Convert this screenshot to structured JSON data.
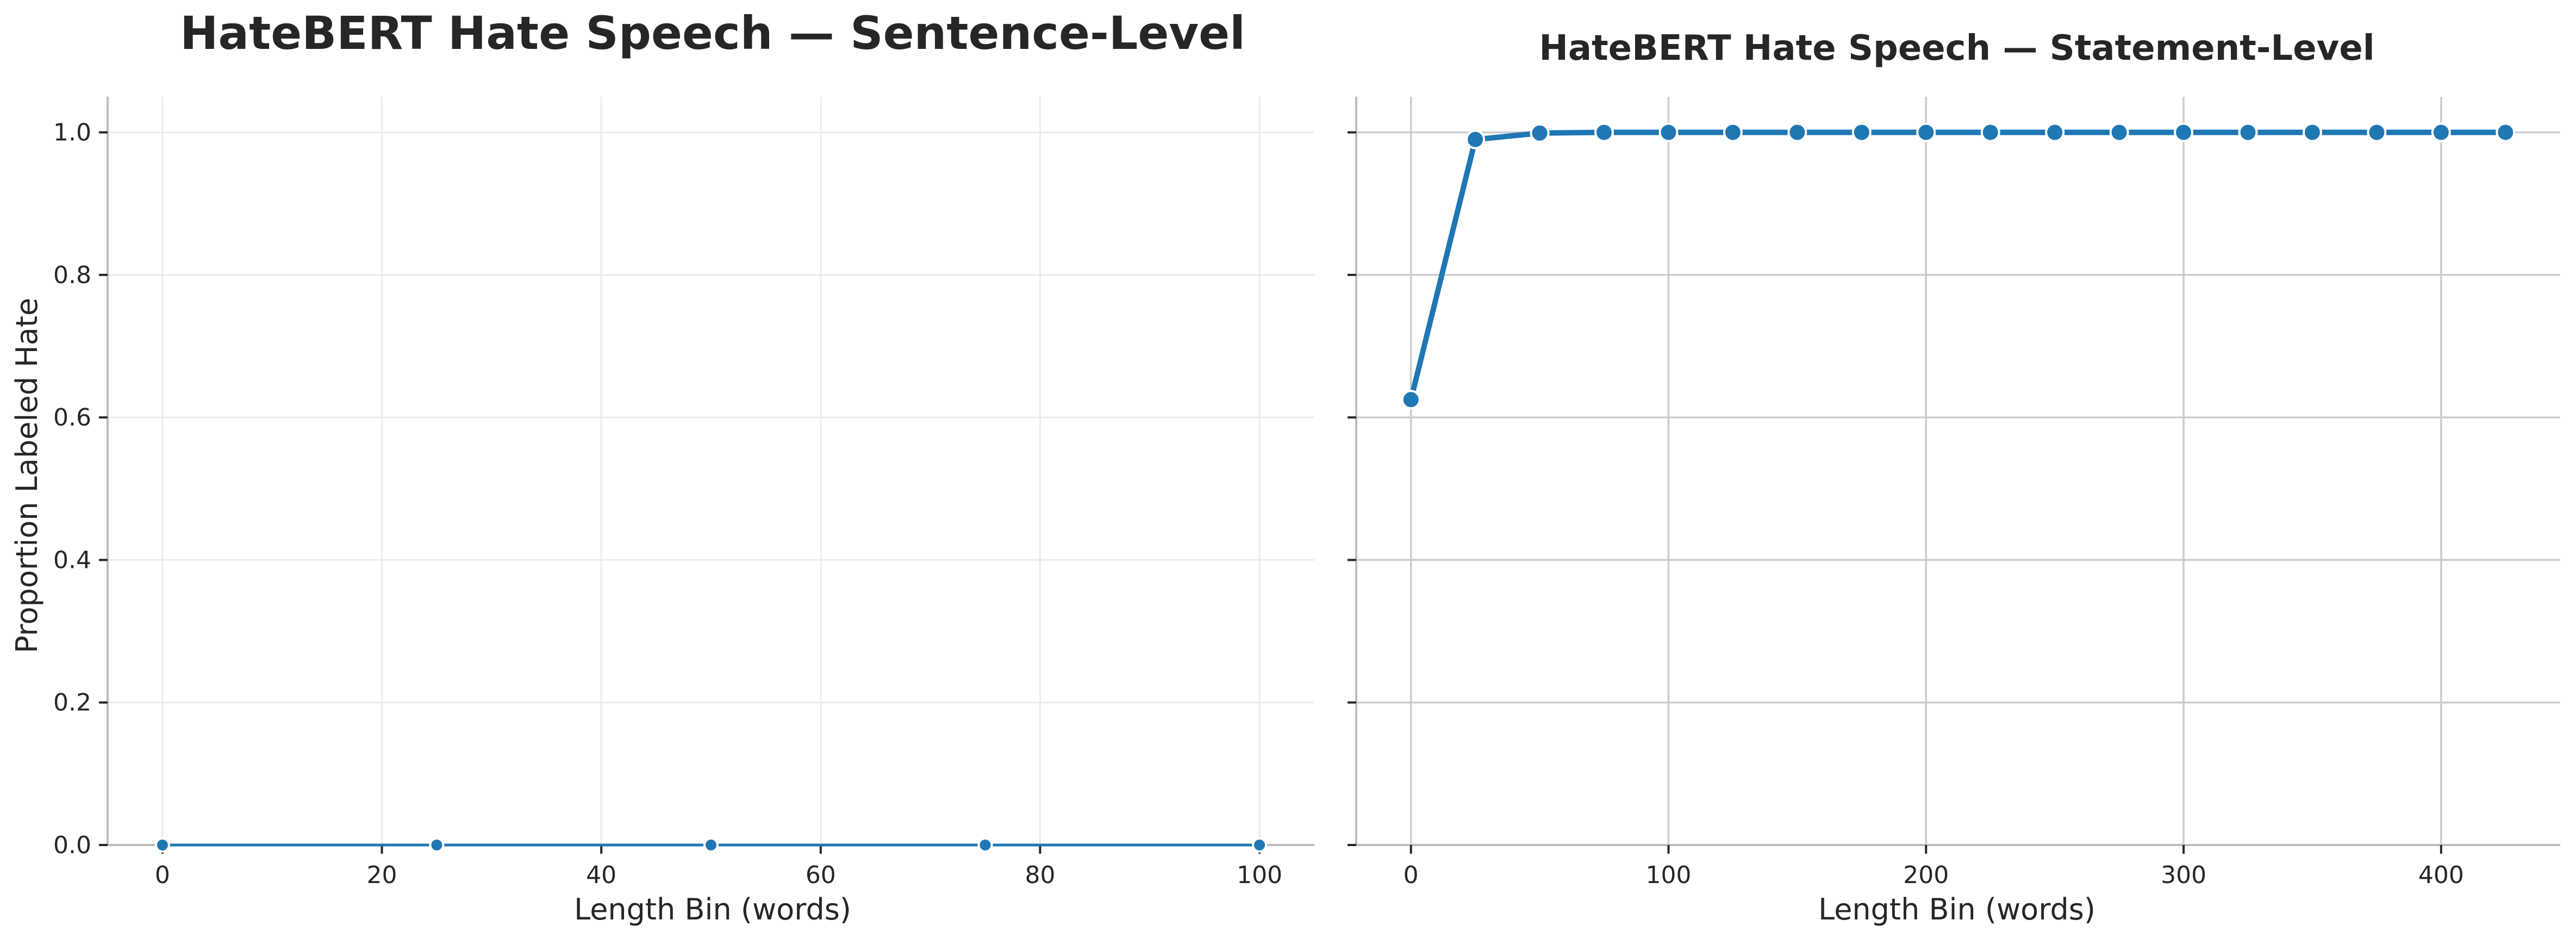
{
  "chart_data": [
    {
      "type": "line",
      "title": "HateBERT Hate Speech — Sentence-Level",
      "xlabel": "Length Bin (words)",
      "ylabel": "Proportion Labeled Hate",
      "xlim": [
        -5,
        105
      ],
      "ylim": [
        0,
        1.05
      ],
      "xticks": [
        0,
        20,
        40,
        60,
        80,
        100
      ],
      "yticks": [
        0.0,
        0.2,
        0.4,
        0.6,
        0.8,
        1.0
      ],
      "ytick_labels": [
        "0.0",
        "0.2",
        "0.4",
        "0.6",
        "0.8",
        "1.0"
      ],
      "grid": true,
      "series": [
        {
          "color": "#1f77b4",
          "x": [
            0,
            25,
            50,
            75,
            100
          ],
          "y": [
            0,
            0,
            0,
            0,
            0
          ]
        }
      ]
    },
    {
      "type": "line",
      "title": "HateBERT Hate Speech — Statement-Level",
      "xlabel": "Length Bin (words)",
      "ylabel": "",
      "xlim": [
        -21.25,
        446.25
      ],
      "ylim": [
        0,
        1.05
      ],
      "xticks": [
        0,
        100,
        200,
        300,
        400
      ],
      "yticks": [
        0.0,
        0.2,
        0.4,
        0.6,
        0.8,
        1.0
      ],
      "ytick_labels": [],
      "grid": true,
      "series": [
        {
          "color": "#1f77b4",
          "x": [
            0,
            25,
            50,
            75,
            100,
            125,
            150,
            175,
            200,
            225,
            250,
            275,
            300,
            325,
            350,
            375,
            400,
            425
          ],
          "y": [
            0.625,
            0.99,
            0.999,
            1.0,
            1.0,
            1.0,
            1.0,
            1.0,
            1.0,
            1.0,
            1.0,
            1.0,
            1.0,
            1.0,
            1.0,
            1.0,
            1.0,
            1.0
          ]
        }
      ]
    }
  ]
}
